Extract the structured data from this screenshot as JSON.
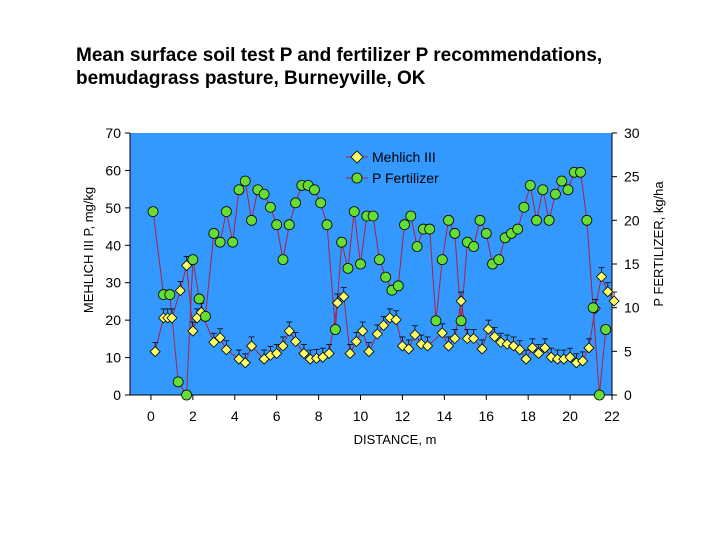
{
  "title": {
    "line1": "Mean surface soil test P and fertilizer P recommendations,",
    "line2": "bemudagrass pasture, Burneyville, OK"
  },
  "colors": {
    "plot_background": "#3399ff",
    "mehlich": "#ffff66",
    "fertilizer": "#66dd33",
    "line": "#aa2244",
    "errorbar": "#000000"
  },
  "chart_data": {
    "type": "line",
    "xlabel": "DISTANCE, m",
    "ylabel_left": "MEHLICH III P, mg/kg",
    "ylabel_right": "P FERTILIZER, kg/ha",
    "xlim": [
      -1,
      22
    ],
    "xticks": [
      0,
      2,
      4,
      6,
      8,
      10,
      12,
      14,
      16,
      18,
      20,
      22
    ],
    "ylim_left": [
      0,
      70
    ],
    "yticks_left": [
      0,
      10,
      20,
      30,
      40,
      50,
      60,
      70
    ],
    "ylim_right": [
      0,
      30
    ],
    "yticks_right": [
      0,
      5,
      10,
      15,
      20,
      25,
      30
    ],
    "legend_position": "top-center",
    "grid": false,
    "series": [
      {
        "name": "Mehlich III",
        "axis": "left",
        "marker": "diamond",
        "points": [
          [
            0.2,
            11.6
          ],
          [
            0.6,
            20.6
          ],
          [
            0.8,
            20.6
          ],
          [
            1.0,
            20.6
          ],
          [
            1.4,
            27.9
          ],
          [
            1.7,
            34.6
          ],
          [
            2.0,
            17.1
          ],
          [
            2.2,
            20.6
          ],
          [
            2.4,
            22.1
          ],
          [
            3.0,
            14.1
          ],
          [
            3.3,
            15.3
          ],
          [
            3.6,
            12.1
          ],
          [
            4.2,
            9.6
          ],
          [
            4.5,
            8.6
          ],
          [
            4.8,
            13.1
          ],
          [
            5.4,
            9.6
          ],
          [
            5.7,
            10.6
          ],
          [
            6.0,
            11.1
          ],
          [
            6.3,
            13.1
          ],
          [
            6.6,
            17.1
          ],
          [
            6.9,
            14.3
          ],
          [
            7.3,
            11.1
          ],
          [
            7.6,
            9.6
          ],
          [
            7.9,
            9.8
          ],
          [
            8.2,
            10.1
          ],
          [
            8.5,
            11.1
          ],
          [
            8.9,
            24.6
          ],
          [
            9.2,
            26.3
          ],
          [
            9.5,
            11.1
          ],
          [
            9.8,
            14.3
          ],
          [
            10.1,
            17.1
          ],
          [
            10.4,
            11.6
          ],
          [
            10.8,
            16.3
          ],
          [
            11.1,
            18.6
          ],
          [
            11.4,
            20.6
          ],
          [
            11.7,
            20.1
          ],
          [
            12.0,
            13.1
          ],
          [
            12.3,
            12.3
          ],
          [
            12.6,
            16.1
          ],
          [
            12.9,
            13.6
          ],
          [
            13.2,
            13.1
          ],
          [
            13.9,
            16.6
          ],
          [
            14.2,
            13.1
          ],
          [
            14.5,
            15.1
          ],
          [
            14.8,
            25.1
          ],
          [
            15.1,
            15.1
          ],
          [
            15.4,
            15.1
          ],
          [
            15.8,
            12.3
          ],
          [
            16.1,
            17.6
          ],
          [
            16.4,
            15.6
          ],
          [
            16.7,
            14.1
          ],
          [
            17.0,
            13.6
          ],
          [
            17.3,
            13.1
          ],
          [
            17.6,
            12.1
          ],
          [
            17.9,
            9.6
          ],
          [
            18.2,
            12.6
          ],
          [
            18.5,
            11.1
          ],
          [
            18.8,
            12.6
          ],
          [
            19.1,
            10.1
          ],
          [
            19.4,
            9.6
          ],
          [
            19.7,
            9.6
          ],
          [
            20.0,
            10.1
          ],
          [
            20.3,
            8.6
          ],
          [
            20.6,
            9.1
          ],
          [
            20.9,
            12.6
          ],
          [
            21.2,
            23.1
          ],
          [
            21.5,
            31.6
          ],
          [
            21.8,
            27.6
          ],
          [
            22.1,
            25.1
          ]
        ]
      },
      {
        "name": "P Fertilizer",
        "axis": "right",
        "marker": "circle",
        "points": [
          [
            0.1,
            21.0
          ],
          [
            0.6,
            11.5
          ],
          [
            0.9,
            11.5
          ],
          [
            1.3,
            1.5
          ],
          [
            1.7,
            0
          ],
          [
            2.0,
            15.5
          ],
          [
            2.3,
            11.0
          ],
          [
            2.6,
            9.0
          ],
          [
            3.0,
            18.5
          ],
          [
            3.3,
            17.5
          ],
          [
            3.6,
            21.0
          ],
          [
            3.9,
            17.5
          ],
          [
            4.2,
            23.5
          ],
          [
            4.5,
            24.5
          ],
          [
            4.8,
            20.0
          ],
          [
            5.1,
            23.5
          ],
          [
            5.4,
            23.0
          ],
          [
            5.7,
            21.5
          ],
          [
            6.0,
            19.5
          ],
          [
            6.3,
            15.5
          ],
          [
            6.6,
            19.5
          ],
          [
            6.9,
            22.0
          ],
          [
            7.2,
            24.0
          ],
          [
            7.5,
            24.0
          ],
          [
            7.8,
            23.5
          ],
          [
            8.1,
            22.0
          ],
          [
            8.4,
            19.5
          ],
          [
            8.8,
            7.5
          ],
          [
            9.1,
            17.5
          ],
          [
            9.4,
            14.5
          ],
          [
            9.7,
            21.0
          ],
          [
            10.0,
            15.0
          ],
          [
            10.3,
            20.5
          ],
          [
            10.6,
            20.5
          ],
          [
            10.9,
            15.5
          ],
          [
            11.2,
            13.5
          ],
          [
            11.5,
            12.0
          ],
          [
            11.8,
            12.5
          ],
          [
            12.1,
            19.5
          ],
          [
            12.4,
            20.5
          ],
          [
            12.7,
            17.0
          ],
          [
            13.0,
            19.0
          ],
          [
            13.3,
            19.0
          ],
          [
            13.6,
            8.5
          ],
          [
            13.9,
            15.5
          ],
          [
            14.2,
            20.0
          ],
          [
            14.5,
            18.5
          ],
          [
            14.8,
            8.5
          ],
          [
            15.1,
            17.5
          ],
          [
            15.4,
            17.0
          ],
          [
            15.7,
            20.0
          ],
          [
            16.0,
            18.5
          ],
          [
            16.3,
            15.0
          ],
          [
            16.6,
            15.5
          ],
          [
            16.9,
            18.0
          ],
          [
            17.2,
            18.5
          ],
          [
            17.5,
            19.0
          ],
          [
            17.8,
            21.5
          ],
          [
            18.1,
            24.0
          ],
          [
            18.4,
            20.0
          ],
          [
            18.7,
            23.5
          ],
          [
            19.0,
            20.0
          ],
          [
            19.3,
            23.0
          ],
          [
            19.6,
            24.5
          ],
          [
            19.9,
            23.5
          ],
          [
            20.2,
            25.5
          ],
          [
            20.5,
            25.5
          ],
          [
            20.8,
            20.0
          ],
          [
            21.1,
            10.0
          ],
          [
            21.4,
            0
          ],
          [
            21.7,
            7.5
          ]
        ]
      }
    ]
  }
}
